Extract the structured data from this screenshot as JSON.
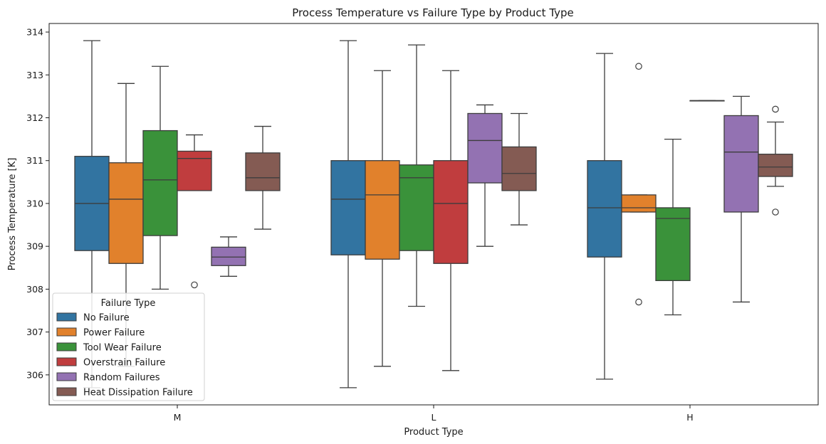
{
  "chart_data": {
    "type": "box",
    "title": "Process Temperature vs Failure Type by Product Type",
    "xlabel": "Product Type",
    "ylabel": "Process Temperature [K]",
    "categories": [
      "M",
      "L",
      "H"
    ],
    "ylim": [
      305.3,
      314.2
    ],
    "yticks": [
      "306",
      "307",
      "308",
      "309",
      "310",
      "311",
      "312",
      "313",
      "314"
    ],
    "legend": {
      "title": "Failure Type",
      "position": "lower-left"
    },
    "series": [
      {
        "name": "No Failure",
        "color": "#3274a1",
        "boxes": [
          {
            "category": "M",
            "whisker_low": 305.7,
            "q1": 308.9,
            "median": 310.0,
            "q3": 311.1,
            "whisker_high": 313.8,
            "outliers": []
          },
          {
            "category": "L",
            "whisker_low": 305.7,
            "q1": 308.8,
            "median": 310.1,
            "q3": 311.0,
            "whisker_high": 313.8,
            "outliers": []
          },
          {
            "category": "H",
            "whisker_low": 305.9,
            "q1": 308.75,
            "median": 309.9,
            "q3": 311.0,
            "whisker_high": 313.5,
            "outliers": []
          }
        ]
      },
      {
        "name": "Power Failure",
        "color": "#e1812c",
        "boxes": [
          {
            "category": "M",
            "whisker_low": 306.2,
            "q1": 308.6,
            "median": 310.1,
            "q3": 310.95,
            "whisker_high": 312.8,
            "outliers": []
          },
          {
            "category": "L",
            "whisker_low": 306.2,
            "q1": 308.7,
            "median": 310.2,
            "q3": 311.0,
            "whisker_high": 313.1,
            "outliers": []
          },
          {
            "category": "H",
            "whisker_low": 309.8,
            "q1": 309.8,
            "median": 309.9,
            "q3": 310.2,
            "whisker_high": 310.2,
            "outliers": [
              313.2,
              307.7
            ]
          }
        ]
      },
      {
        "name": "Tool Wear Failure",
        "color": "#3a923a",
        "boxes": [
          {
            "category": "M",
            "whisker_low": 308.0,
            "q1": 309.25,
            "median": 310.55,
            "q3": 311.7,
            "whisker_high": 313.2,
            "outliers": []
          },
          {
            "category": "L",
            "whisker_low": 307.6,
            "q1": 308.9,
            "median": 310.6,
            "q3": 310.9,
            "whisker_high": 313.7,
            "outliers": []
          },
          {
            "category": "H",
            "whisker_low": 307.4,
            "q1": 308.2,
            "median": 309.65,
            "q3": 309.9,
            "whisker_high": 311.5,
            "outliers": []
          }
        ]
      },
      {
        "name": "Overstrain Failure",
        "color": "#c03d3e",
        "boxes": [
          {
            "category": "M",
            "whisker_low": 310.3,
            "q1": 310.3,
            "median": 311.05,
            "q3": 311.22,
            "whisker_high": 311.6,
            "outliers": [
              308.1
            ]
          },
          {
            "category": "L",
            "whisker_low": 306.1,
            "q1": 308.6,
            "median": 310.0,
            "q3": 311.0,
            "whisker_high": 313.1,
            "outliers": []
          },
          {
            "category": "H",
            "whisker_low": 312.4,
            "q1": 312.4,
            "median": 312.4,
            "q3": 312.4,
            "whisker_high": 312.4,
            "outliers": []
          }
        ]
      },
      {
        "name": "Random Failures",
        "color": "#9372b2",
        "boxes": [
          {
            "category": "M",
            "whisker_low": 308.3,
            "q1": 308.55,
            "median": 308.75,
            "q3": 308.98,
            "whisker_high": 309.22,
            "outliers": []
          },
          {
            "category": "L",
            "whisker_low": 309.0,
            "q1": 310.48,
            "median": 311.47,
            "q3": 312.1,
            "whisker_high": 312.3,
            "outliers": []
          },
          {
            "category": "H",
            "whisker_low": 307.7,
            "q1": 309.8,
            "median": 311.2,
            "q3": 312.05,
            "whisker_high": 312.5,
            "outliers": []
          }
        ]
      },
      {
        "name": "Heat Dissipation Failure",
        "color": "#845b53",
        "boxes": [
          {
            "category": "M",
            "whisker_low": 309.4,
            "q1": 310.3,
            "median": 310.6,
            "q3": 311.18,
            "whisker_high": 311.8,
            "outliers": []
          },
          {
            "category": "L",
            "whisker_low": 309.5,
            "q1": 310.3,
            "median": 310.7,
            "q3": 311.32,
            "whisker_high": 312.1,
            "outliers": []
          },
          {
            "category": "H",
            "whisker_low": 310.4,
            "q1": 310.63,
            "median": 310.85,
            "q3": 311.15,
            "whisker_high": 311.9,
            "outliers": [
              312.2,
              309.8
            ]
          }
        ]
      }
    ]
  }
}
